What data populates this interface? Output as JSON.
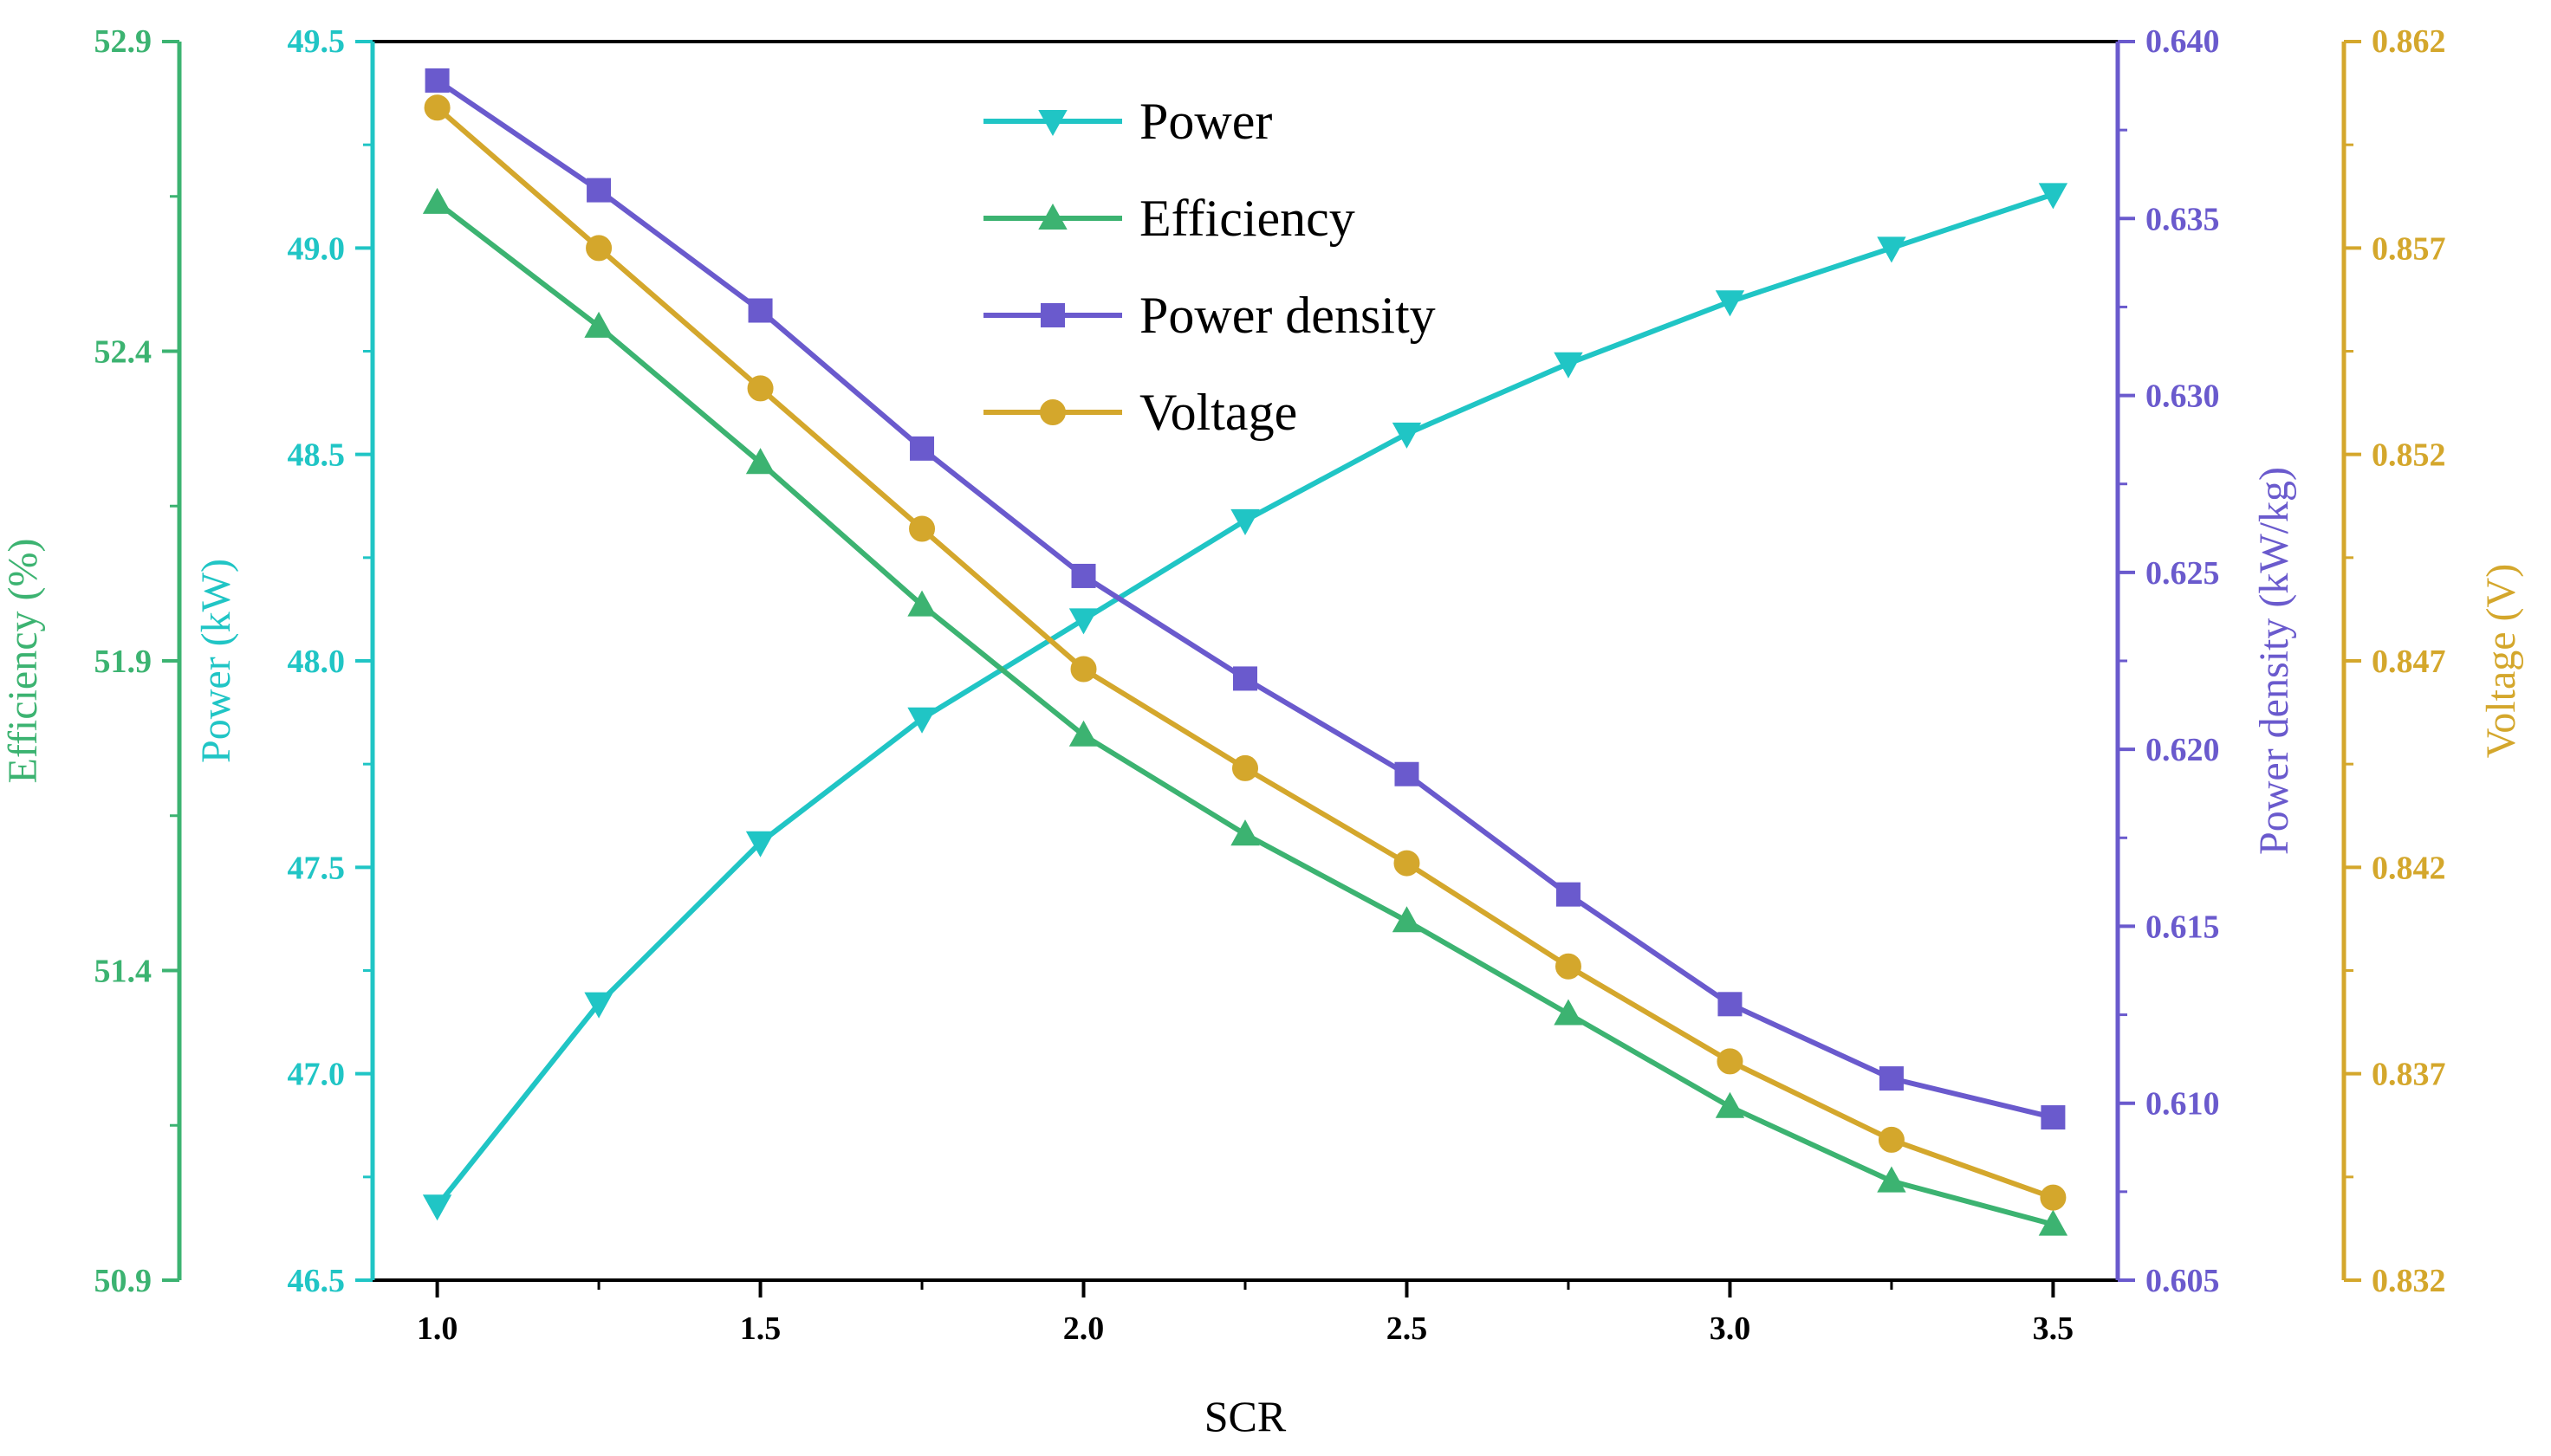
{
  "chart_data": {
    "type": "line",
    "title": "",
    "xlabel": "SCR",
    "x": [
      1.0,
      1.25,
      1.5,
      1.75,
      2.0,
      2.25,
      2.5,
      2.75,
      3.0,
      3.25,
      3.5
    ],
    "xlim": [
      0.9,
      3.6
    ],
    "xticks": [
      "1.0",
      "1.5",
      "2.0",
      "2.5",
      "3.0",
      "3.5"
    ],
    "xtick_values": [
      1.0,
      1.5,
      2.0,
      2.5,
      3.0,
      3.5
    ],
    "legend_position": "top-center",
    "axes": [
      {
        "key": "efficiency",
        "label": "Efficiency (%)",
        "side": "left-outer",
        "color": "#3cb371",
        "ylim": [
          50.9,
          52.9
        ],
        "ticks": [
          "50.9",
          "51.4",
          "51.9",
          "52.4",
          "52.9"
        ],
        "tick_values": [
          50.9,
          51.4,
          51.9,
          52.4,
          52.9
        ]
      },
      {
        "key": "power",
        "label": "Power (kW)",
        "side": "left-inner",
        "color": "#20c5c5",
        "ylim": [
          46.5,
          49.5
        ],
        "ticks": [
          "46.5",
          "47.0",
          "47.5",
          "48.0",
          "48.5",
          "49.0",
          "49.5"
        ],
        "tick_values": [
          46.5,
          47.0,
          47.5,
          48.0,
          48.5,
          49.0,
          49.5
        ]
      },
      {
        "key": "power_density",
        "label": "Power density (kW/kg)",
        "side": "right-inner",
        "color": "#6a5acd",
        "ylim": [
          0.605,
          0.64
        ],
        "ticks": [
          "0.605",
          "0.610",
          "0.615",
          "0.620",
          "0.625",
          "0.630",
          "0.635",
          "0.640"
        ],
        "tick_values": [
          0.605,
          0.61,
          0.615,
          0.62,
          0.625,
          0.63,
          0.635,
          0.64
        ]
      },
      {
        "key": "voltage",
        "label": "Voltage (V)",
        "side": "right-outer",
        "color": "#d4a72c",
        "ylim": [
          0.832,
          0.862
        ],
        "ticks": [
          "0.832",
          "0.837",
          "0.842",
          "0.847",
          "0.852",
          "0.857",
          "0.862"
        ],
        "tick_values": [
          0.832,
          0.837,
          0.842,
          0.847,
          0.852,
          0.857,
          0.862
        ]
      }
    ],
    "series": [
      {
        "name": "Power",
        "axis": "power",
        "marker": "triangle-down",
        "color": "#20c5c5",
        "values": [
          46.68,
          47.17,
          47.56,
          47.86,
          48.1,
          48.34,
          48.55,
          48.72,
          48.87,
          49.0,
          49.13
        ]
      },
      {
        "name": "Efficiency",
        "axis": "efficiency",
        "marker": "triangle-up",
        "color": "#3cb371",
        "values": [
          52.64,
          52.44,
          52.22,
          51.99,
          51.78,
          51.62,
          51.48,
          51.33,
          51.18,
          51.06,
          50.99
        ]
      },
      {
        "name": "Power density",
        "axis": "power_density",
        "color": "#6a5acd",
        "marker": "square",
        "values": [
          0.6389,
          0.6358,
          0.6324,
          0.6285,
          0.6249,
          0.622,
          0.6193,
          0.6159,
          0.6128,
          0.6107,
          0.6096
        ]
      },
      {
        "name": "Voltage",
        "axis": "voltage",
        "marker": "circle",
        "color": "#d4a72c",
        "values": [
          0.8604,
          0.857,
          0.8536,
          0.8502,
          0.8468,
          0.8444,
          0.8421,
          0.8396,
          0.8373,
          0.8354,
          0.834
        ]
      }
    ]
  }
}
